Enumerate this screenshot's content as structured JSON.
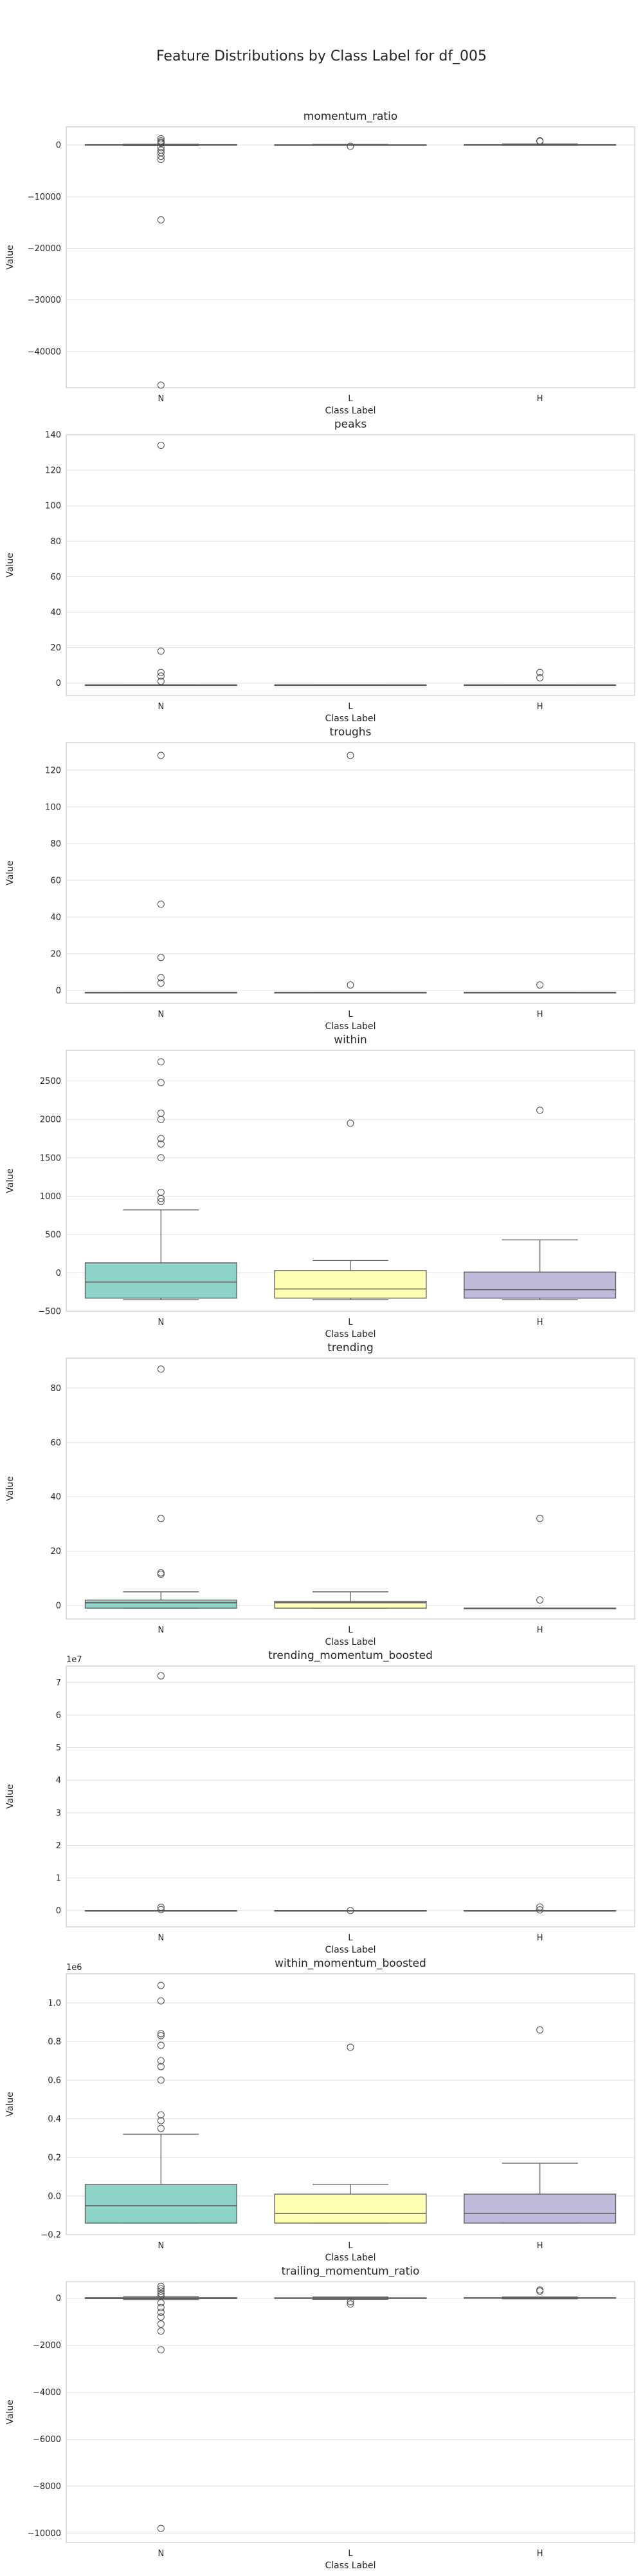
{
  "figure": {
    "title": "Feature Distributions by Class Label for df_005"
  },
  "style": {
    "panel_bg": "#ffffff",
    "grid_color": "#e0e0e0",
    "spine_color": "#cccccc",
    "median_color": "#5a5a5a",
    "outlier_edge": "#4a4a4a",
    "palette": {
      "N": "#8dd3c7",
      "L": "#ffffb3",
      "H": "#bebada"
    }
  },
  "chart_data": [
    {
      "type": "box",
      "title": "momentum_ratio",
      "xlabel": "Class Label",
      "ylabel": "Value",
      "categories": [
        "N",
        "L",
        "H"
      ],
      "ylim": [
        -47000,
        3500
      ],
      "yticks": [
        0,
        -10000,
        -20000,
        -30000,
        -40000
      ],
      "ytick_labels": [
        "0",
        "−10000",
        "−20000",
        "−30000",
        "−40000"
      ],
      "offset_text": "",
      "boxes": [
        {
          "label": "N",
          "whislo": -150,
          "q1": -60,
          "med": 0,
          "q3": 60,
          "whishi": 150,
          "fliers": [
            1200,
            800,
            500,
            300,
            -500,
            -1000,
            -1500,
            -2200,
            -2800,
            -14500,
            -46500
          ]
        },
        {
          "label": "L",
          "whislo": -100,
          "q1": -30,
          "med": 0,
          "q3": 30,
          "whishi": 100,
          "fliers": [
            -250
          ]
        },
        {
          "label": "H",
          "whislo": -100,
          "q1": -20,
          "med": 10,
          "q3": 60,
          "whishi": 200,
          "fliers": [
            800,
            700
          ]
        }
      ]
    },
    {
      "type": "box",
      "title": "peaks",
      "xlabel": "Class Label",
      "ylabel": "Value",
      "categories": [
        "N",
        "L",
        "H"
      ],
      "ylim": [
        -7,
        140
      ],
      "yticks": [
        0,
        20,
        40,
        60,
        80,
        100,
        120,
        140
      ],
      "ytick_labels": [
        "0",
        "20",
        "40",
        "60",
        "80",
        "100",
        "120",
        "140"
      ],
      "offset_text": "",
      "boxes": [
        {
          "label": "N",
          "whislo": -1,
          "q1": -1,
          "med": -1,
          "q3": -1,
          "whishi": -1,
          "fliers": [
            134,
            18,
            6,
            4,
            1
          ]
        },
        {
          "label": "L",
          "whislo": -1,
          "q1": -1,
          "med": -1,
          "q3": -1,
          "whishi": -1,
          "fliers": []
        },
        {
          "label": "H",
          "whislo": -1,
          "q1": -1,
          "med": -1,
          "q3": -1,
          "whishi": -1,
          "fliers": [
            6,
            3
          ]
        }
      ]
    },
    {
      "type": "box",
      "title": "troughs",
      "xlabel": "Class Label",
      "ylabel": "Value",
      "categories": [
        "N",
        "L",
        "H"
      ],
      "ylim": [
        -7,
        135
      ],
      "yticks": [
        0,
        20,
        40,
        60,
        80,
        100,
        120
      ],
      "ytick_labels": [
        "0",
        "20",
        "40",
        "60",
        "80",
        "100",
        "120"
      ],
      "offset_text": "",
      "boxes": [
        {
          "label": "N",
          "whislo": -1,
          "q1": -1,
          "med": -1,
          "q3": -1,
          "whishi": -1,
          "fliers": [
            128,
            47,
            18,
            7,
            4
          ]
        },
        {
          "label": "L",
          "whislo": -1,
          "q1": -1,
          "med": -1,
          "q3": -1,
          "whishi": -1,
          "fliers": [
            128,
            3
          ]
        },
        {
          "label": "H",
          "whislo": -1,
          "q1": -1,
          "med": -1,
          "q3": -1,
          "whishi": -1,
          "fliers": [
            3
          ]
        }
      ]
    },
    {
      "type": "box",
      "title": "within",
      "xlabel": "Class Label",
      "ylabel": "Value",
      "categories": [
        "N",
        "L",
        "H"
      ],
      "ylim": [
        -500,
        2900
      ],
      "yticks": [
        -500,
        0,
        500,
        1000,
        1500,
        2000,
        2500
      ],
      "ytick_labels": [
        "−500",
        "0",
        "500",
        "1000",
        "1500",
        "2000",
        "2500"
      ],
      "offset_text": "",
      "boxes": [
        {
          "label": "N",
          "whislo": -350,
          "q1": -330,
          "med": -120,
          "q3": 130,
          "whishi": 820,
          "fliers": [
            2750,
            2480,
            2080,
            2000,
            1750,
            1680,
            1500,
            1050,
            970,
            930
          ]
        },
        {
          "label": "L",
          "whislo": -350,
          "q1": -330,
          "med": -210,
          "q3": 30,
          "whishi": 160,
          "fliers": [
            1950
          ]
        },
        {
          "label": "H",
          "whislo": -350,
          "q1": -330,
          "med": -220,
          "q3": 10,
          "whishi": 430,
          "fliers": [
            2120
          ]
        }
      ]
    },
    {
      "type": "box",
      "title": "trending",
      "xlabel": "Class Label",
      "ylabel": "Value",
      "categories": [
        "N",
        "L",
        "H"
      ],
      "ylim": [
        -5,
        91
      ],
      "yticks": [
        0,
        20,
        40,
        60,
        80
      ],
      "ytick_labels": [
        "0",
        "20",
        "40",
        "60",
        "80"
      ],
      "offset_text": "",
      "boxes": [
        {
          "label": "N",
          "whislo": -1,
          "q1": -1,
          "med": 1,
          "q3": 2,
          "whishi": 5,
          "fliers": [
            87,
            32,
            12,
            11.5
          ]
        },
        {
          "label": "L",
          "whislo": -1,
          "q1": -1,
          "med": 1,
          "q3": 1.5,
          "whishi": 5,
          "fliers": []
        },
        {
          "label": "H",
          "whislo": -1,
          "q1": -1,
          "med": -1,
          "q3": -1,
          "whishi": -1,
          "fliers": [
            32,
            2
          ]
        }
      ]
    },
    {
      "type": "box",
      "title": "trending_momentum_boosted",
      "xlabel": "Class Label",
      "ylabel": "Value",
      "categories": [
        "N",
        "L",
        "H"
      ],
      "ylim": [
        -5000000,
        75000000
      ],
      "yticks": [
        0,
        10000000,
        20000000,
        30000000,
        40000000,
        50000000,
        60000000,
        70000000
      ],
      "ytick_labels": [
        "0",
        "1",
        "2",
        "3",
        "4",
        "5",
        "6",
        "7"
      ],
      "offset_text": "1e7",
      "boxes": [
        {
          "label": "N",
          "whislo": 0,
          "q1": 0,
          "med": 0,
          "q3": 0,
          "whishi": 0,
          "fliers": [
            72000000,
            1000000,
            300000
          ]
        },
        {
          "label": "L",
          "whislo": 0,
          "q1": 0,
          "med": 0,
          "q3": 0,
          "whishi": 0,
          "fliers": [
            0
          ]
        },
        {
          "label": "H",
          "whislo": 0,
          "q1": 0,
          "med": 0,
          "q3": 0,
          "whishi": 0,
          "fliers": [
            1100000,
            200000
          ]
        }
      ]
    },
    {
      "type": "box",
      "title": "within_momentum_boosted",
      "xlabel": "Class Label",
      "ylabel": "Value",
      "categories": [
        "N",
        "L",
        "H"
      ],
      "ylim": [
        -200000,
        1150000
      ],
      "yticks": [
        -200000,
        0,
        200000,
        400000,
        600000,
        800000,
        1000000
      ],
      "ytick_labels": [
        "−0.2",
        "0.0",
        "0.2",
        "0.4",
        "0.6",
        "0.8",
        "1.0"
      ],
      "offset_text": "1e6",
      "boxes": [
        {
          "label": "N",
          "whislo": -140000,
          "q1": -140000,
          "med": -50000,
          "q3": 60000,
          "whishi": 320000,
          "fliers": [
            1090000,
            1010000,
            840000,
            830000,
            780000,
            700000,
            670000,
            600000,
            420000,
            390000,
            350000
          ]
        },
        {
          "label": "L",
          "whislo": -140000,
          "q1": -140000,
          "med": -90000,
          "q3": 10000,
          "whishi": 60000,
          "fliers": [
            770000
          ]
        },
        {
          "label": "H",
          "whislo": -140000,
          "q1": -140000,
          "med": -90000,
          "q3": 10000,
          "whishi": 170000,
          "fliers": [
            860000
          ]
        }
      ]
    },
    {
      "type": "box",
      "title": "trailing_momentum_ratio",
      "xlabel": "Class Label",
      "ylabel": "Value",
      "categories": [
        "N",
        "L",
        "H"
      ],
      "ylim": [
        -10400,
        700
      ],
      "yticks": [
        0,
        -2000,
        -4000,
        -6000,
        -8000,
        -10000
      ],
      "ytick_labels": [
        "0",
        "−2000",
        "−4000",
        "−6000",
        "−8000",
        "−10000"
      ],
      "offset_text": "",
      "boxes": [
        {
          "label": "N",
          "whislo": -60,
          "q1": -20,
          "med": 0,
          "q3": 20,
          "whishi": 60,
          "fliers": [
            500,
            400,
            300,
            200,
            100,
            -200,
            -400,
            -600,
            -800,
            -1100,
            -1400,
            -2200,
            -9800
          ]
        },
        {
          "label": "L",
          "whislo": -50,
          "q1": -15,
          "med": 0,
          "q3": 15,
          "whishi": 50,
          "fliers": [
            -150,
            -250
          ]
        },
        {
          "label": "H",
          "whislo": -30,
          "q1": -5,
          "med": 5,
          "q3": 20,
          "whishi": 50,
          "fliers": [
            350,
            300
          ]
        }
      ]
    }
  ]
}
